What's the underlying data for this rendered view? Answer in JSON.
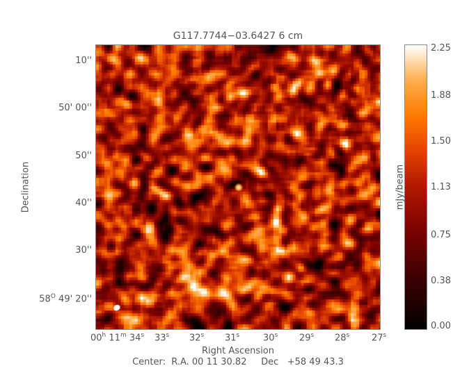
{
  "chart_data": {
    "type": "heatmap",
    "title": "G117.7744−03.6427 6 cm",
    "xlabel": "Right Ascension",
    "ylabel": "Declination",
    "x_ticks": [
      {
        "label": "00h 11m 34s",
        "parts": [
          "00",
          "h",
          " 11",
          "m",
          " 34",
          "s"
        ]
      },
      {
        "label": "33s",
        "parts": [
          "33",
          "s"
        ]
      },
      {
        "label": "32s",
        "parts": [
          "32",
          "s"
        ]
      },
      {
        "label": "31s",
        "parts": [
          "31",
          "s"
        ]
      },
      {
        "label": "30s",
        "parts": [
          "30",
          "s"
        ]
      },
      {
        "label": "29s",
        "parts": [
          "29",
          "s"
        ]
      },
      {
        "label": "28s",
        "parts": [
          "28",
          "s"
        ]
      },
      {
        "label": "27s",
        "parts": [
          "27",
          "s"
        ]
      }
    ],
    "y_ticks": [
      "10''",
      "50' 00''",
      "50''",
      "40''",
      "30''",
      "58o 49' 20''"
    ],
    "y_tick_first_prefix": "58",
    "y_tick_first_sup": "O",
    "y_tick_first_rest": " 49' 20''",
    "colorbar": {
      "label": "mJy/beam",
      "ticks": [
        "2.25",
        "1.88",
        "1.50",
        "1.13",
        "0.75",
        "0.38",
        "0.00"
      ],
      "range": [
        0,
        2.25
      ],
      "colormap": "red-temperature"
    },
    "features": [
      "point source near image center",
      "beam ellipse lower-left"
    ],
    "center_text": "Center:  R.A. 00 11 30.82     Dec   +58 49 43.3"
  }
}
